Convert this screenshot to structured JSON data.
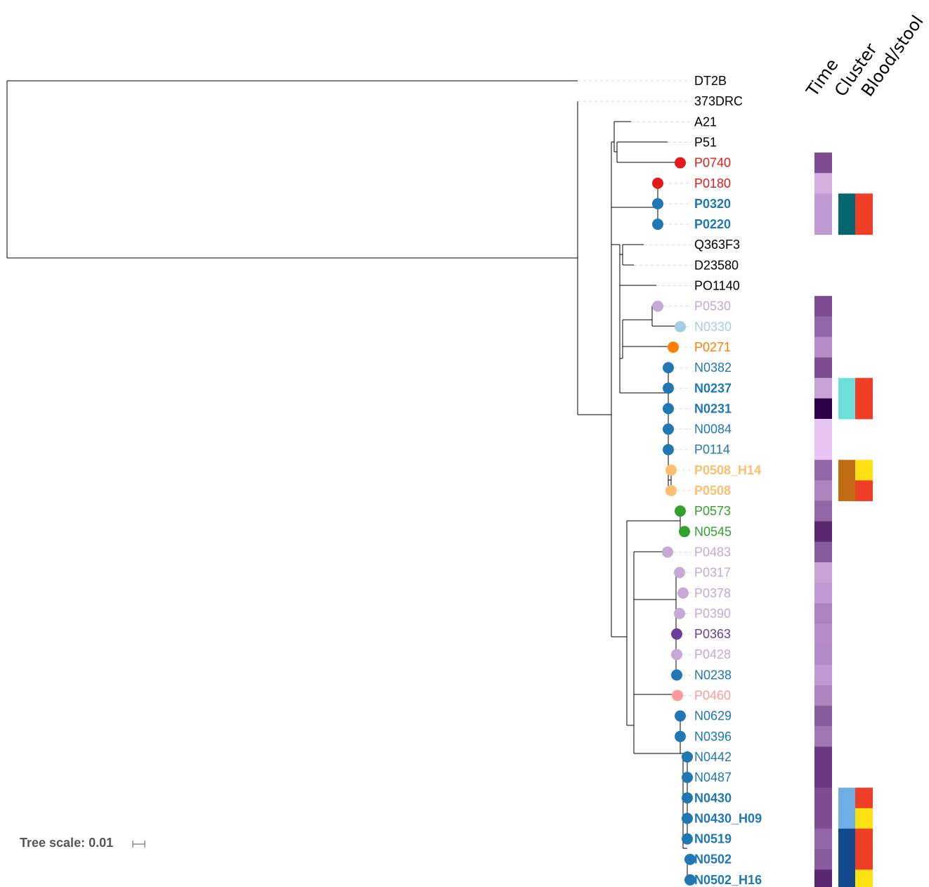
{
  "headers": {
    "time": "Time",
    "cluster": "Cluster",
    "blood_stool": "Blood/stool"
  },
  "scale": {
    "label": "Tree scale: 0.01"
  },
  "colors": {
    "red": "#e31a1c",
    "blue": "#1f78b4",
    "light_purple": "#c5a9d6",
    "light_blue": "#a6cee3",
    "orange": "#ff7f00",
    "light_orange": "#fdbf6f",
    "green": "#33a02c",
    "purple": "#6a3d9a",
    "pink": "#fb9a99",
    "black": "#000000",
    "cluster_teal": "#04666f",
    "cluster_cyan": "#6ee0dc",
    "cluster_brown": "#c16c13",
    "cluster_skyblue": "#6faee4",
    "cluster_navy": "#134a8e",
    "source_red": "#f03f27",
    "source_yellow": "#fde112"
  },
  "tips": [
    {
      "label": "DT2B",
      "color": "black",
      "bold": false,
      "dot": null,
      "time": null,
      "cluster": null,
      "source": null
    },
    {
      "label": "373DRC",
      "color": "black",
      "bold": false,
      "dot": null,
      "time": null,
      "cluster": null,
      "source": null
    },
    {
      "label": "A21",
      "color": "black",
      "bold": false,
      "dot": null,
      "time": null,
      "cluster": null,
      "source": null
    },
    {
      "label": "P51",
      "color": "black",
      "bold": false,
      "dot": null,
      "time": null,
      "cluster": null,
      "source": null
    },
    {
      "label": "P0740",
      "color": "red",
      "bold": false,
      "dot": "red",
      "time": "#7e4d91",
      "cluster": null,
      "source": null
    },
    {
      "label": "P0180",
      "color": "red",
      "bold": false,
      "dot": "red",
      "time": "#d6aee0",
      "cluster": null,
      "source": null
    },
    {
      "label": "P0320",
      "color": "blue",
      "bold": true,
      "dot": "blue",
      "time": "#c09ad2",
      "cluster": "cluster_teal",
      "source": "source_red"
    },
    {
      "label": "P0220",
      "color": "blue",
      "bold": true,
      "dot": "blue",
      "time": "#c09ad2",
      "cluster": "cluster_teal",
      "source": "source_red"
    },
    {
      "label": "Q363F3",
      "color": "black",
      "bold": false,
      "dot": null,
      "time": null,
      "cluster": null,
      "source": null
    },
    {
      "label": "D23580",
      "color": "black",
      "bold": false,
      "dot": null,
      "time": null,
      "cluster": null,
      "source": null
    },
    {
      "label": "PO1140",
      "color": "black",
      "bold": false,
      "dot": null,
      "time": null,
      "cluster": null,
      "source": null
    },
    {
      "label": "P0530",
      "color": "light_purple",
      "bold": false,
      "dot": "light_purple",
      "time": "#7e4d91",
      "cluster": null,
      "source": null
    },
    {
      "label": "N0330",
      "color": "light_blue",
      "bold": false,
      "dot": "light_blue",
      "time": "#9466a8",
      "cluster": null,
      "source": null
    },
    {
      "label": "P0271",
      "color": "orange",
      "bold": false,
      "dot": "orange",
      "time": "#b98bc8",
      "cluster": null,
      "source": null
    },
    {
      "label": "N0382",
      "color": "blue",
      "bold": false,
      "dot": "blue",
      "time": "#7e4d91",
      "cluster": null,
      "source": null
    },
    {
      "label": "N0237",
      "color": "blue",
      "bold": true,
      "dot": "blue",
      "time": "#c6a2d6",
      "cluster": "cluster_cyan",
      "source": "source_red"
    },
    {
      "label": "N0231",
      "color": "blue",
      "bold": true,
      "dot": "blue",
      "time": "#2d0048",
      "cluster": "cluster_cyan",
      "source": "source_red"
    },
    {
      "label": "N0084",
      "color": "blue",
      "bold": false,
      "dot": "blue",
      "time": "#e6c4f4",
      "cluster": null,
      "source": null
    },
    {
      "label": "P0114",
      "color": "blue",
      "bold": false,
      "dot": "blue",
      "time": "#e6c4f4",
      "cluster": null,
      "source": null
    },
    {
      "label": "P0508_H14",
      "color": "light_orange",
      "bold": true,
      "dot": "light_orange",
      "time": "#9466a8",
      "cluster": "cluster_brown",
      "source": "source_yellow"
    },
    {
      "label": "P0508",
      "color": "light_orange",
      "bold": true,
      "dot": "light_orange",
      "time": "#ae82bf",
      "cluster": "cluster_brown",
      "source": "source_red"
    },
    {
      "label": "P0573",
      "color": "green",
      "bold": false,
      "dot": "green",
      "time": "#9466a8",
      "cluster": null,
      "source": null
    },
    {
      "label": "N0545",
      "color": "green",
      "bold": false,
      "dot": "green",
      "time": "#5a266e",
      "cluster": null,
      "source": null
    },
    {
      "label": "P0483",
      "color": "light_purple",
      "bold": false,
      "dot": "light_purple",
      "time": "#8a5a9e",
      "cluster": null,
      "source": null
    },
    {
      "label": "P0317",
      "color": "light_purple",
      "bold": false,
      "dot": "light_purple",
      "time": "#c6a2d6",
      "cluster": null,
      "source": null
    },
    {
      "label": "P0378",
      "color": "light_purple",
      "bold": false,
      "dot": "light_purple",
      "time": "#c09ad2",
      "cluster": null,
      "source": null
    },
    {
      "label": "P0390",
      "color": "light_purple",
      "bold": false,
      "dot": "light_purple",
      "time": "#ae82bf",
      "cluster": null,
      "source": null
    },
    {
      "label": "P0363",
      "color": "purple",
      "bold": false,
      "dot": "purple",
      "time": "#b98bc8",
      "cluster": null,
      "source": null
    },
    {
      "label": "P0428",
      "color": "light_purple",
      "bold": false,
      "dot": "light_purple",
      "time": "#b48ac6",
      "cluster": null,
      "source": null
    },
    {
      "label": "N0238",
      "color": "blue",
      "bold": false,
      "dot": "blue",
      "time": "#c09ad2",
      "cluster": null,
      "source": null
    },
    {
      "label": "P0460",
      "color": "pink",
      "bold": false,
      "dot": "pink",
      "time": "#ae82bf",
      "cluster": null,
      "source": null
    },
    {
      "label": "N0629",
      "color": "blue",
      "bold": false,
      "dot": "blue",
      "time": "#8a5a9e",
      "cluster": null,
      "source": null
    },
    {
      "label": "N0396",
      "color": "blue",
      "bold": false,
      "dot": "blue",
      "time": "#a174b4",
      "cluster": null,
      "source": null
    },
    {
      "label": "N0442",
      "color": "blue",
      "bold": false,
      "dot": "blue",
      "time": "#6c3781",
      "cluster": null,
      "source": null
    },
    {
      "label": "N0487",
      "color": "blue",
      "bold": false,
      "dot": "blue",
      "time": "#6c3781",
      "cluster": null,
      "source": null
    },
    {
      "label": "N0430",
      "color": "blue",
      "bold": true,
      "dot": "blue",
      "time": "#7e4d91",
      "cluster": "cluster_skyblue",
      "source": "source_red"
    },
    {
      "label": "N0430_H09",
      "color": "blue",
      "bold": true,
      "dot": "blue",
      "time": "#7e4d91",
      "cluster": "cluster_skyblue",
      "source": "source_yellow"
    },
    {
      "label": "N0519",
      "color": "blue",
      "bold": true,
      "dot": "blue",
      "time": "#9466a8",
      "cluster": "cluster_navy",
      "source": "source_red"
    },
    {
      "label": "N0502",
      "color": "blue",
      "bold": true,
      "dot": "blue",
      "time": "#8a5a9e",
      "cluster": "cluster_navy",
      "source": "source_red"
    },
    {
      "label": "N0502_H16",
      "color": "blue",
      "bold": true,
      "dot": "blue",
      "time": "#5a266e",
      "cluster": "cluster_navy",
      "source": "source_yellow"
    }
  ]
}
